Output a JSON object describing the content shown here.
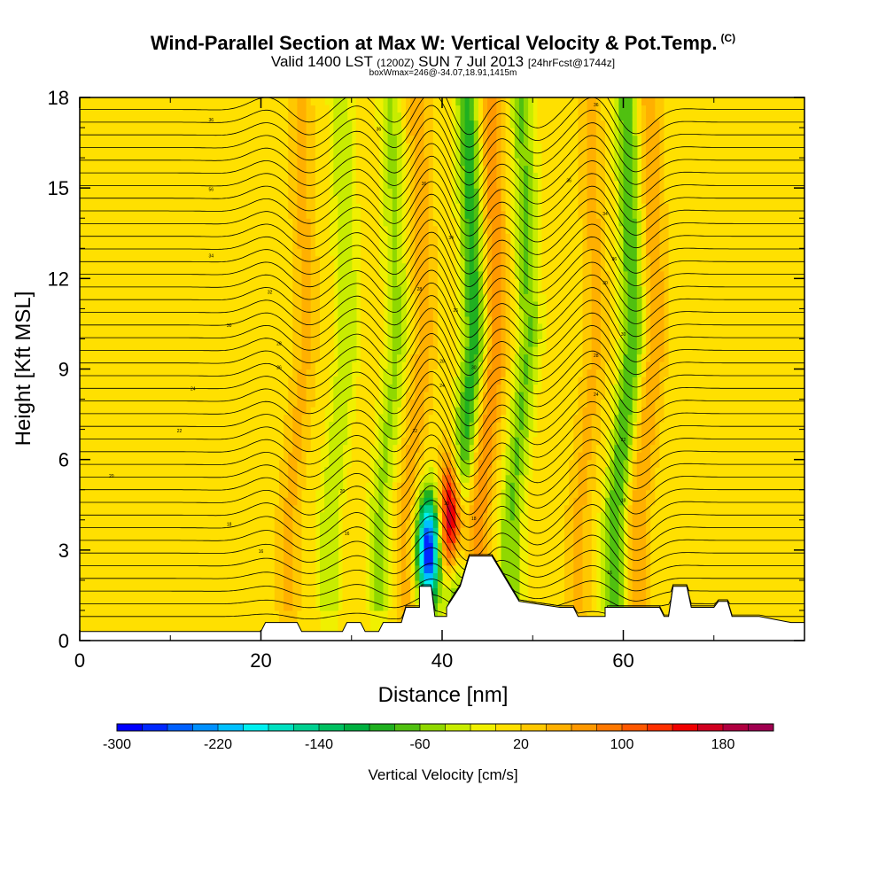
{
  "chart_data": {
    "type": "heatmap",
    "title": "Wind-Parallel Section at Max W: Vertical Velocity & Pot.Temp.",
    "title_mark": "(C)",
    "subtitle": {
      "prefix": "Valid 1400 LST",
      "utc": "(1200Z)",
      "date": "SUN 7 Jul 2013",
      "forecast": "[24hrFcst@1744z]"
    },
    "subsubtitle": "boxWmax=246@-34.07,18.91,1415m",
    "xlabel": "Distance [nm]",
    "ylabel": "Height [Kft MSL]",
    "xlim": [
      0,
      80
    ],
    "ylim": [
      0,
      18
    ],
    "xticks": [
      0,
      20,
      40,
      60
    ],
    "yticks": [
      0,
      3,
      6,
      9,
      12,
      15,
      18
    ],
    "colorbar": {
      "label": "Vertical Velocity [cm/s]",
      "min": -300,
      "max": 220,
      "step": 20,
      "tick_values": [
        -300,
        -220,
        -140,
        -60,
        20,
        100,
        180
      ],
      "colors": [
        "#0000ff",
        "#0028ff",
        "#0060ff",
        "#0090ff",
        "#00c0ff",
        "#00f0f0",
        "#00e0c0",
        "#00d090",
        "#00c060",
        "#00b040",
        "#20b020",
        "#50c010",
        "#90d800",
        "#c8ec00",
        "#f0f000",
        "#ffe000",
        "#ffc800",
        "#ffb000",
        "#ff9800",
        "#ff7800",
        "#ff5800",
        "#ff3000",
        "#f00000",
        "#d00020",
        "#b00040",
        "#a00050"
      ]
    },
    "field_features": [
      {
        "label": "updraft",
        "x": 23,
        "w_cms": 60
      },
      {
        "label": "downdraft",
        "x": 27.5,
        "w_cms": -80
      },
      {
        "label": "downdraft",
        "x": 33,
        "w_cms": -90
      },
      {
        "label": "updraft",
        "x": 36,
        "w_cms": 70
      },
      {
        "label": "downdraft",
        "x": 41.5,
        "w_cms": -170
      },
      {
        "label": "updraft",
        "x": 44,
        "w_cms": 110
      },
      {
        "label": "max updraft",
        "x": 41,
        "z_kft": 4,
        "w_cms": 246
      },
      {
        "label": "max downdraft",
        "x": 38.5,
        "z_kft": 3,
        "w_cms": -300
      },
      {
        "label": "downdraft",
        "x": 47.5,
        "w_cms": -120
      },
      {
        "label": "updraft",
        "x": 55,
        "w_cms": 60
      },
      {
        "label": "downdraft",
        "x": 59,
        "w_cms": -150
      },
      {
        "label": "updraft",
        "x": 61.5,
        "w_cms": 80
      }
    ],
    "terrain": [
      {
        "x": 0,
        "z_kft": 0.3
      },
      {
        "x": 20,
        "z_kft": 0.3
      },
      {
        "x": 20.5,
        "z_kft": 0.6
      },
      {
        "x": 24,
        "z_kft": 0.6
      },
      {
        "x": 24.5,
        "z_kft": 0.3
      },
      {
        "x": 29,
        "z_kft": 0.3
      },
      {
        "x": 29.5,
        "z_kft": 0.6
      },
      {
        "x": 31,
        "z_kft": 0.6
      },
      {
        "x": 31.5,
        "z_kft": 0.3
      },
      {
        "x": 33,
        "z_kft": 0.3
      },
      {
        "x": 33.5,
        "z_kft": 0.6
      },
      {
        "x": 35.5,
        "z_kft": 0.6
      },
      {
        "x": 36,
        "z_kft": 1.1
      },
      {
        "x": 37.5,
        "z_kft": 1.1
      },
      {
        "x": 37.5,
        "z_kft": 1.8
      },
      {
        "x": 38.8,
        "z_kft": 1.8
      },
      {
        "x": 39.2,
        "z_kft": 0.8
      },
      {
        "x": 40.5,
        "z_kft": 0.8
      },
      {
        "x": 40.5,
        "z_kft": 1.1
      },
      {
        "x": 42,
        "z_kft": 1.8
      },
      {
        "x": 43,
        "z_kft": 2.8
      },
      {
        "x": 45.5,
        "z_kft": 2.8
      },
      {
        "x": 47.5,
        "z_kft": 1.8
      },
      {
        "x": 48.5,
        "z_kft": 1.3
      },
      {
        "x": 53,
        "z_kft": 1.1
      },
      {
        "x": 54.5,
        "z_kft": 1.1
      },
      {
        "x": 55,
        "z_kft": 0.8
      },
      {
        "x": 58,
        "z_kft": 0.8
      },
      {
        "x": 58,
        "z_kft": 1.1
      },
      {
        "x": 64,
        "z_kft": 1.1
      },
      {
        "x": 64.5,
        "z_kft": 0.8
      },
      {
        "x": 65,
        "z_kft": 0.8
      },
      {
        "x": 65.5,
        "z_kft": 1.8
      },
      {
        "x": 67,
        "z_kft": 1.8
      },
      {
        "x": 67.5,
        "z_kft": 1.1
      },
      {
        "x": 70,
        "z_kft": 1.1
      },
      {
        "x": 70.5,
        "z_kft": 1.3
      },
      {
        "x": 71.5,
        "z_kft": 1.3
      },
      {
        "x": 72,
        "z_kft": 0.8
      },
      {
        "x": 75,
        "z_kft": 0.8
      },
      {
        "x": 78.5,
        "z_kft": 0.6
      },
      {
        "x": 80,
        "z_kft": 0.6
      }
    ],
    "contour_labels": [
      {
        "x": 14.5,
        "z_kft": 17.2,
        "text": "36"
      },
      {
        "x": 33,
        "z_kft": 16.9,
        "text": "36"
      },
      {
        "x": 57,
        "z_kft": 17.7,
        "text": "36"
      },
      {
        "x": 14.5,
        "z_kft": 14.9,
        "text": "56"
      },
      {
        "x": 38,
        "z_kft": 15.1,
        "text": "36"
      },
      {
        "x": 54,
        "z_kft": 15.2,
        "text": "36"
      },
      {
        "x": 58,
        "z_kft": 14.1,
        "text": "34"
      },
      {
        "x": 41,
        "z_kft": 13.3,
        "text": "34"
      },
      {
        "x": 14.5,
        "z_kft": 12.7,
        "text": "34"
      },
      {
        "x": 59,
        "z_kft": 12.6,
        "text": "36"
      },
      {
        "x": 21,
        "z_kft": 11.5,
        "text": "32"
      },
      {
        "x": 37.5,
        "z_kft": 11.6,
        "text": "28"
      },
      {
        "x": 58,
        "z_kft": 11.8,
        "text": "30"
      },
      {
        "x": 41.5,
        "z_kft": 10.9,
        "text": "26"
      },
      {
        "x": 16.5,
        "z_kft": 10.4,
        "text": "30"
      },
      {
        "x": 60,
        "z_kft": 10.1,
        "text": "30"
      },
      {
        "x": 22,
        "z_kft": 9.8,
        "text": "28"
      },
      {
        "x": 40,
        "z_kft": 9.2,
        "text": "28"
      },
      {
        "x": 43.5,
        "z_kft": 9.0,
        "text": "30"
      },
      {
        "x": 57,
        "z_kft": 9.4,
        "text": "28"
      },
      {
        "x": 22,
        "z_kft": 9.0,
        "text": "26"
      },
      {
        "x": 40,
        "z_kft": 8.4,
        "text": "24"
      },
      {
        "x": 12.5,
        "z_kft": 8.3,
        "text": "24"
      },
      {
        "x": 57,
        "z_kft": 8.1,
        "text": "24"
      },
      {
        "x": 11,
        "z_kft": 6.9,
        "text": "22"
      },
      {
        "x": 37,
        "z_kft": 6.9,
        "text": "22"
      },
      {
        "x": 60,
        "z_kft": 6.6,
        "text": "22"
      },
      {
        "x": 3.5,
        "z_kft": 5.4,
        "text": "20"
      },
      {
        "x": 29,
        "z_kft": 4.9,
        "text": "20"
      },
      {
        "x": 40.5,
        "z_kft": 4.5,
        "text": "20"
      },
      {
        "x": 60,
        "z_kft": 4.6,
        "text": "18"
      },
      {
        "x": 43.5,
        "z_kft": 4.0,
        "text": "18"
      },
      {
        "x": 16.5,
        "z_kft": 3.8,
        "text": "18"
      },
      {
        "x": 29.5,
        "z_kft": 3.5,
        "text": "16"
      },
      {
        "x": 20,
        "z_kft": 2.9,
        "text": "16"
      },
      {
        "x": 58.5,
        "z_kft": 2.2,
        "text": "16"
      }
    ]
  }
}
